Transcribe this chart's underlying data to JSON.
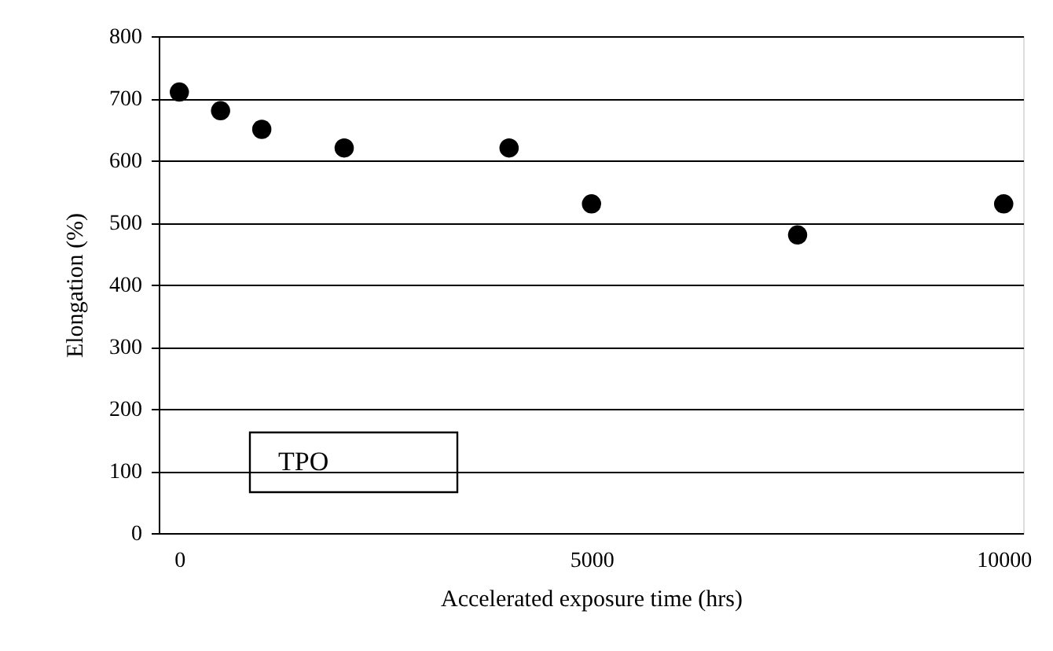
{
  "chart_data": {
    "type": "scatter",
    "xlabel": "Accelerated exposure time (hrs)",
    "ylabel": "Elongation (%)",
    "x": [
      0,
      500,
      1000,
      2000,
      4000,
      5000,
      7500,
      10000
    ],
    "values": [
      710,
      680,
      650,
      620,
      620,
      530,
      480,
      530
    ],
    "color": "#000000",
    "marker": "circle",
    "xlim": [
      -250,
      10236
    ],
    "xticks": [
      0,
      5000,
      10000
    ],
    "ylim": [
      0,
      800
    ],
    "yticks": [
      0,
      100,
      200,
      300,
      400,
      500,
      600,
      700,
      800
    ],
    "grid": "y",
    "annotations": [
      "TPO"
    ]
  }
}
